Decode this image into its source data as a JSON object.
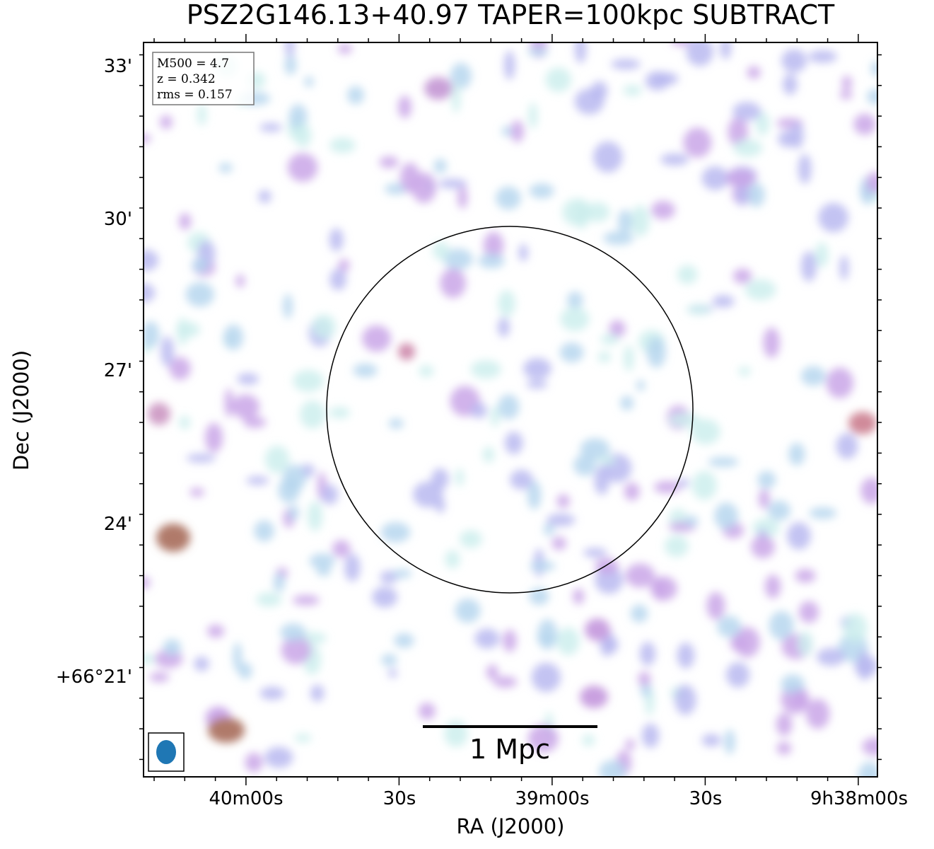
{
  "title": "PSZ2G146.13+40.97 TAPER=100kpc SUBTRACT",
  "x_axis": {
    "label": "RA (J2000)",
    "ticks": [
      "40m00s",
      "30s",
      "39m00s",
      "30s",
      "9h38m00s"
    ]
  },
  "y_axis": {
    "label": "Dec (J2000)",
    "ticks": [
      "33'",
      "30'",
      "27'",
      "24'",
      "+66°21'"
    ]
  },
  "info_box": [
    "M500 = 4.7",
    "z = 0.342",
    "rms = 0.157"
  ],
  "scale_bar": "1 Mpc"
}
